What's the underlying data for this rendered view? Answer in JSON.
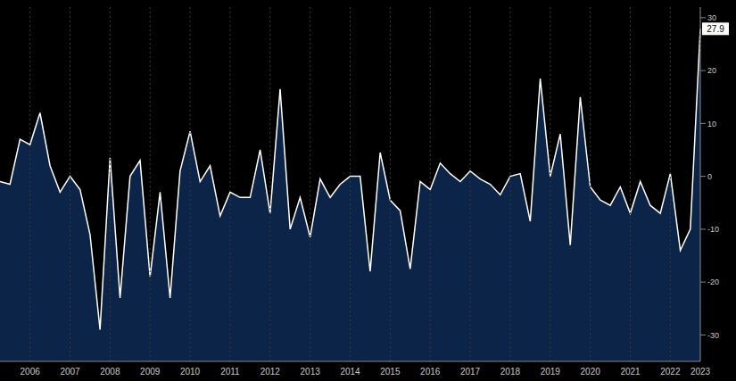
{
  "chart_data": {
    "type": "area",
    "categories": [
      null,
      null,
      null,
      "2006",
      null,
      null,
      null,
      "2007",
      null,
      null,
      null,
      "2008",
      null,
      null,
      null,
      "2009",
      null,
      null,
      null,
      "2010",
      null,
      null,
      null,
      "2011",
      null,
      null,
      null,
      "2012",
      null,
      null,
      null,
      "2013",
      null,
      null,
      null,
      "2014",
      null,
      null,
      null,
      "2015",
      null,
      null,
      null,
      "2016",
      null,
      null,
      null,
      "2017",
      null,
      null,
      null,
      "2018",
      null,
      null,
      null,
      "2019",
      null,
      null,
      null,
      "2020",
      null,
      null,
      null,
      "2021",
      null,
      null,
      null,
      "2022",
      null,
      null,
      "2023"
    ],
    "values": [
      -1,
      -1.5,
      7,
      6,
      12,
      2,
      -3,
      0,
      -2.5,
      -11,
      -29,
      3.5,
      -23,
      0,
      3,
      -19,
      -3,
      -23,
      1,
      8.5,
      -1,
      2,
      -7.5,
      -3,
      -4,
      -4,
      5,
      -7,
      16.5,
      -10,
      -4,
      -11.5,
      -0.5,
      -4,
      -1.5,
      0,
      0,
      -18,
      4.5,
      -4.5,
      -6.5,
      -17.5,
      -1,
      -2.5,
      2.5,
      0.5,
      -1,
      1,
      -0.5,
      -1.5,
      -3.5,
      0,
      0.5,
      -8.5,
      18.5,
      0,
      8,
      -13,
      15,
      -2,
      -4.5,
      -5.5,
      -2,
      -7,
      -1,
      -5.5,
      -7,
      0.5,
      -14,
      -10,
      27.9
    ],
    "color": "#0c2447",
    "ylim": [
      -35,
      32
    ],
    "yticks": [
      -30,
      -20,
      -10,
      0,
      10,
      20,
      30
    ],
    "grid": true
  }
}
